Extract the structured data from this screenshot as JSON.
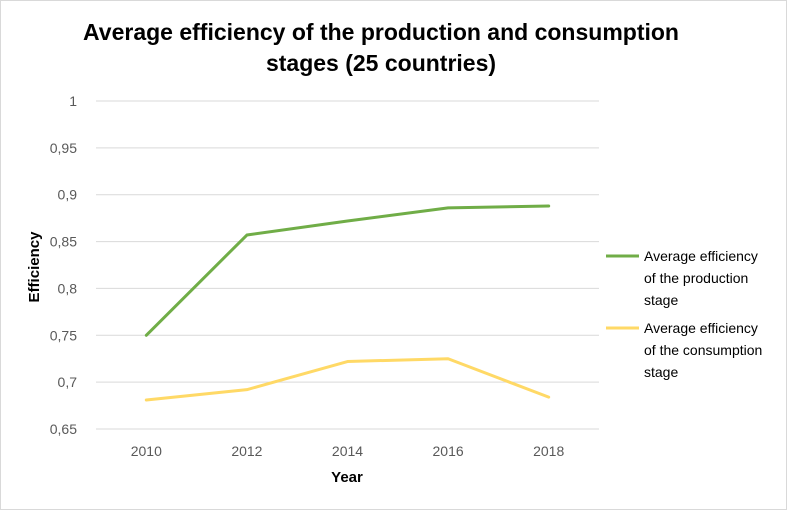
{
  "chart_data": {
    "type": "line",
    "title": "Average efficiency of the production and consumption stages (25 countries)",
    "xlabel": "Year",
    "ylabel": "Efficiency",
    "categories": [
      "2010",
      "2012",
      "2014",
      "2016",
      "2018"
    ],
    "ylim": [
      0.65,
      1
    ],
    "ytick_labels": [
      "0,65",
      "0,7",
      "0,75",
      "0,8",
      "0,85",
      "0,9",
      "0,95",
      "1"
    ],
    "grid": true,
    "legend_position": "right",
    "series": [
      {
        "name": "Average efficiency of the production stage",
        "legend_lines": [
          "Average efficiency",
          "of the production",
          "stage"
        ],
        "color": "#70ad47",
        "values": [
          0.75,
          0.857,
          0.872,
          0.886,
          0.888
        ]
      },
      {
        "name": "Average efficiency of the consumption stage",
        "legend_lines": [
          "Average efficiency",
          "of the consumption",
          "stage"
        ],
        "color": "#ffd966",
        "values": [
          0.681,
          0.692,
          0.722,
          0.725,
          0.684
        ]
      }
    ]
  }
}
